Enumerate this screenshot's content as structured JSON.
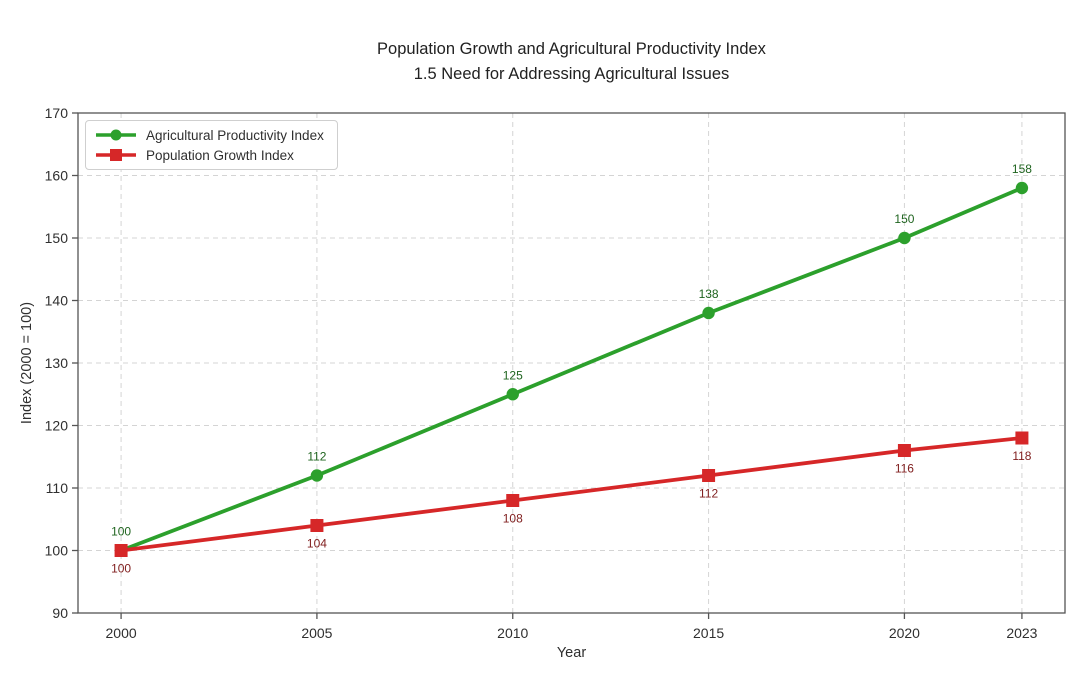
{
  "figure": {
    "title_line1": "Population Growth and Agricultural Productivity Index",
    "title_line2": "1.5 Need for Addressing Agricultural Issues",
    "background": "#ffffff"
  },
  "chart_data": {
    "type": "line",
    "title": "Population Growth and Agricultural Productivity Index\n1.5 Need for Addressing Agricultural Issues",
    "xlabel": "Year",
    "ylabel": "Index (2000 = 100)",
    "x": [
      2000,
      2005,
      2010,
      2015,
      2020,
      2023
    ],
    "series": [
      {
        "name": "Agricultural Productivity Index",
        "values": [
          100,
          112,
          125,
          138,
          150,
          158
        ],
        "color": "#2ca02c",
        "label_color": "#1f641f",
        "marker": "circle",
        "label_dy": -15
      },
      {
        "name": "Population Growth Index",
        "values": [
          100,
          104,
          108,
          112,
          116,
          118
        ],
        "color": "#d62728",
        "label_color": "#7f1d1d",
        "marker": "square",
        "label_dy": 22
      }
    ],
    "xticks": [
      2000,
      2005,
      2010,
      2015,
      2020,
      2023
    ],
    "yticks": [
      90,
      100,
      110,
      120,
      130,
      140,
      150,
      160,
      170
    ],
    "xlim": [
      1998.9,
      2024.1
    ],
    "ylim": [
      90,
      170
    ],
    "grid": true,
    "grid_style": "dashed",
    "grid_color": "#d4d4d4",
    "axis_color": "#555555",
    "tick_label_color": "#2f2f2f",
    "legend_position": "upper-left",
    "background": "#ffffff"
  }
}
